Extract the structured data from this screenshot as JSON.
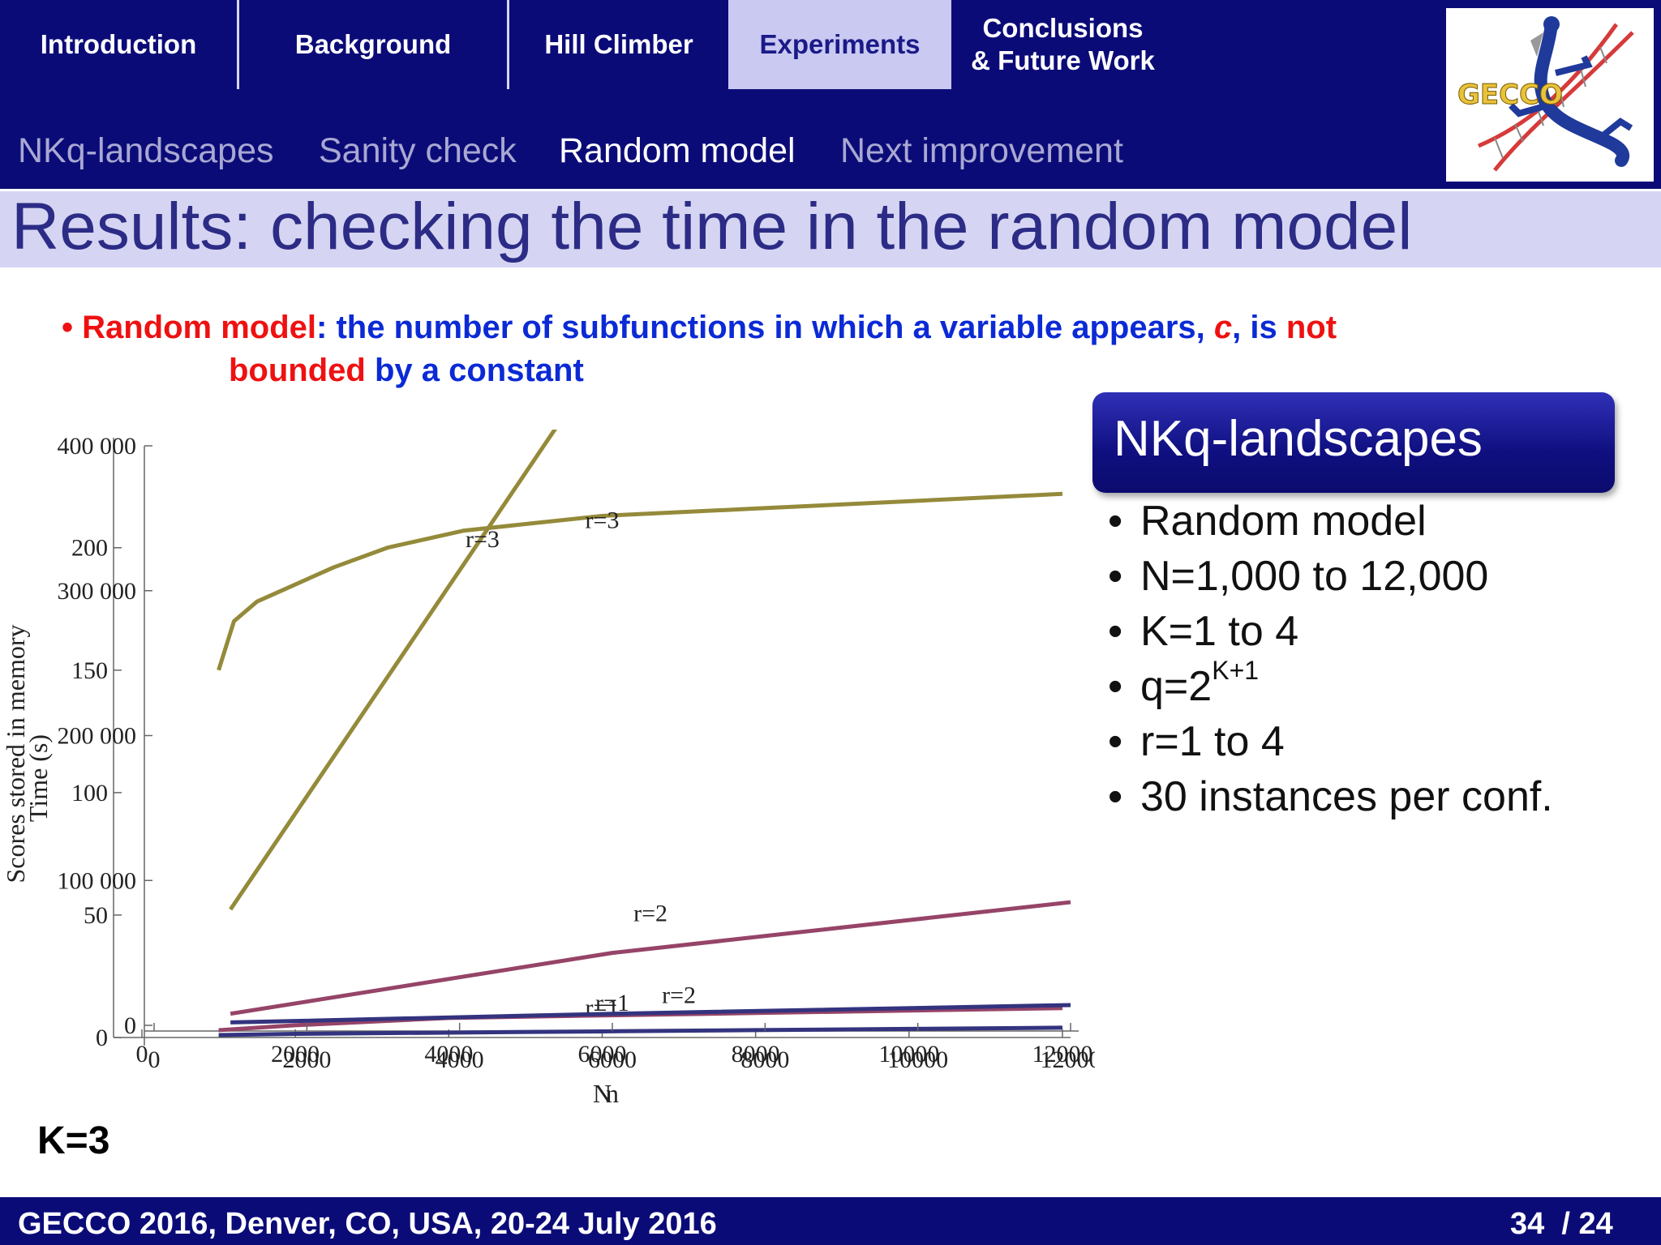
{
  "nav": {
    "sections": [
      {
        "label": "Introduction"
      },
      {
        "label": "Background"
      },
      {
        "label": "Hill Climber"
      },
      {
        "label": "Experiments"
      },
      {
        "label": "Conclusions\n& Future Work"
      }
    ],
    "active_section": "Experiments",
    "subsections": [
      {
        "label": "NKq-landscapes"
      },
      {
        "label": "Sanity check"
      },
      {
        "label": "Random model"
      },
      {
        "label": "Next improvement"
      }
    ],
    "active_subsection": "Random model"
  },
  "logo": {
    "text": "GECCO"
  },
  "slide": {
    "title": "Results: checking the time in the random model",
    "bullet": {
      "p1": "Random model",
      "p2": ": the number of subfunctions in which a variable appears, ",
      "p3": "c",
      "p4": ", is ",
      "p5": "not",
      "p6": "bounded",
      "p7": " by a constant"
    },
    "info_box": {
      "title": "NKq-landscapes",
      "items": [
        "Random model",
        "N=1,000 to 12,000",
        "K=1 to 4",
        "q=2",
        "r=1 to 4",
        "30 instances per conf."
      ],
      "q_exponent": "K+1"
    },
    "k_label": "K=3"
  },
  "footer": {
    "conference": "GECCO 2016, Denver, CO, USA, 20-24 July 2016",
    "page": "34",
    "total": "/ 24"
  },
  "colors": {
    "nav_bg": "#0b0b78",
    "active_tab": "#c9c9f2",
    "r3": "#948a3a",
    "r2": "#964468",
    "r1": "#33337f"
  },
  "chart_data": [
    {
      "type": "line",
      "xlabel": "N",
      "ylabel": "Time (s)",
      "xlim": [
        0,
        12000
      ],
      "ylim": [
        0,
        235
      ],
      "x_ticks": [
        "0",
        "2000",
        "4000",
        "6000",
        "8000",
        "10000",
        "12000"
      ],
      "y_ticks": [
        "0",
        "50",
        "100",
        "150",
        "200"
      ],
      "series": [
        {
          "name": "r=3",
          "x": [
            1000,
            1200,
            1500,
            2500,
            3200,
            4200,
            6000,
            8000,
            10000,
            12000
          ],
          "y": [
            150,
            170,
            178,
            192,
            200,
            207,
            213,
            216,
            219,
            222
          ]
        },
        {
          "name": "r=2",
          "x": [
            1000,
            2000,
            4000,
            6000,
            8000,
            10000,
            12000
          ],
          "y": [
            3,
            5,
            8,
            9,
            10,
            11,
            12
          ]
        },
        {
          "name": "r=1",
          "x": [
            1000,
            2000,
            4000,
            6000,
            8000,
            10000,
            12000
          ],
          "y": [
            1,
            1.5,
            2,
            2.5,
            3,
            3.5,
            4
          ]
        }
      ]
    },
    {
      "type": "line",
      "xlabel": "n",
      "ylabel": "Scores stored in memory",
      "xlim": [
        0,
        12000
      ],
      "ylim": [
        0,
        400000
      ],
      "x_ticks": [
        "0",
        "2000",
        "4000",
        "6000",
        "8000",
        "10000",
        "12000"
      ],
      "y_ticks": [
        "0",
        "100 000",
        "200 000",
        "300 000",
        "400 000"
      ],
      "series": [
        {
          "name": "r=3",
          "x": [
            1000,
            6000
          ],
          "y": [
            80000,
            470000
          ]
        },
        {
          "name": "r=2",
          "x": [
            1000,
            6000,
            12000
          ],
          "y": [
            8000,
            50000,
            85000
          ]
        },
        {
          "name": "r=1",
          "x": [
            1000,
            6000,
            12000
          ],
          "y": [
            2000,
            8000,
            14000
          ]
        }
      ]
    }
  ]
}
